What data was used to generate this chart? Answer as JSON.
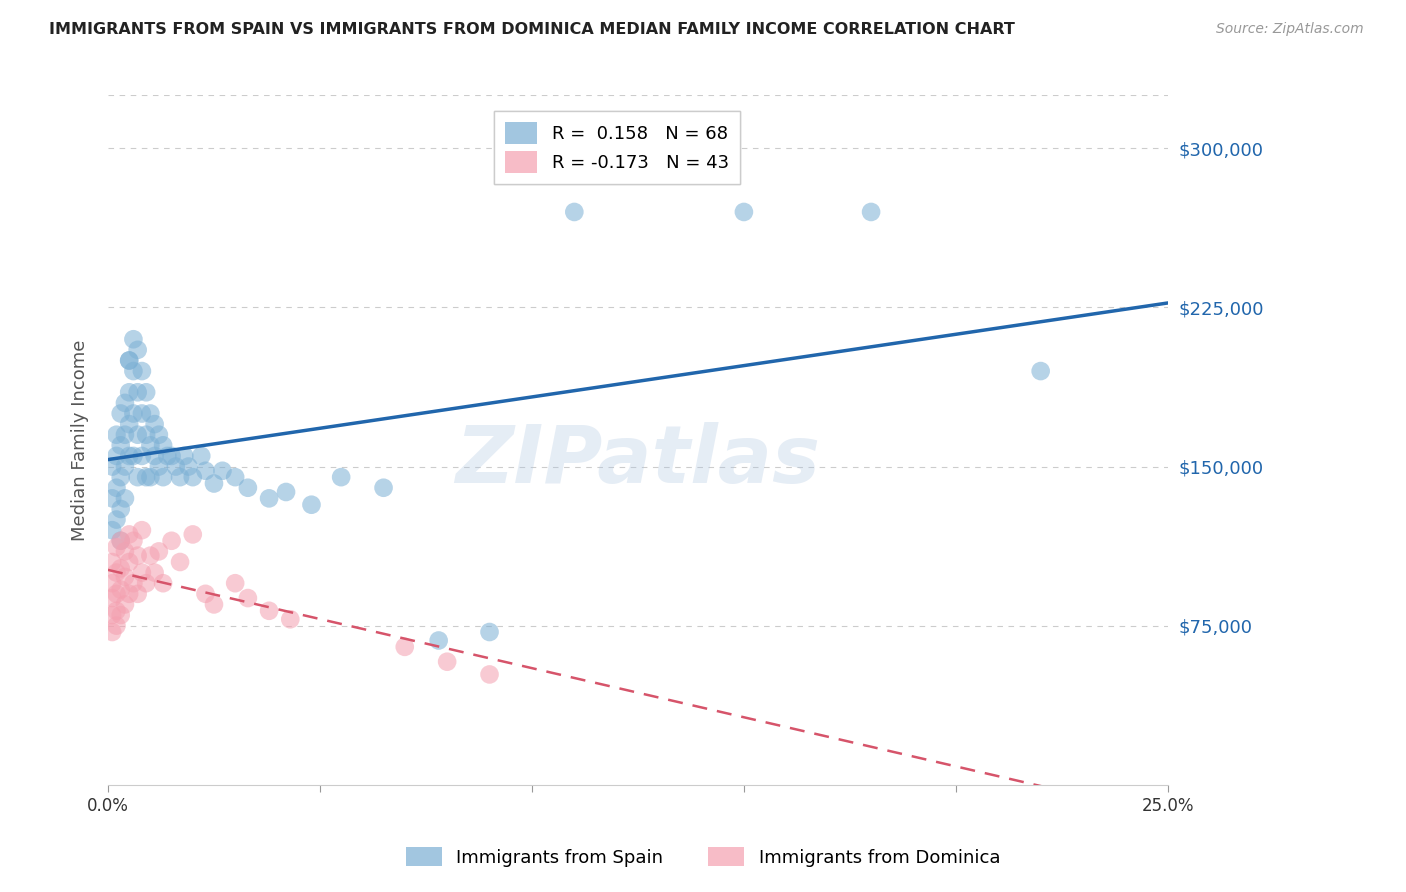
{
  "title": "IMMIGRANTS FROM SPAIN VS IMMIGRANTS FROM DOMINICA MEDIAN FAMILY INCOME CORRELATION CHART",
  "source": "Source: ZipAtlas.com",
  "ylabel": "Median Family Income",
  "yticks": [
    0,
    75000,
    150000,
    225000,
    300000
  ],
  "ytick_labels": [
    "",
    "$75,000",
    "$150,000",
    "$225,000",
    "$300,000"
  ],
  "xlim": [
    0.0,
    0.25
  ],
  "ylim": [
    0,
    325000
  ],
  "legend_label_spain": "Immigrants from Spain",
  "legend_label_dominica": "Immigrants from Dominica",
  "blue_color": "#7bafd4",
  "pink_color": "#f4a0b0",
  "blue_line_color": "#2166ac",
  "pink_line_color": "#d6546a",
  "watermark": "ZIPatlas",
  "spain_x": [
    0.001,
    0.001,
    0.001,
    0.002,
    0.002,
    0.002,
    0.002,
    0.003,
    0.003,
    0.003,
    0.003,
    0.003,
    0.004,
    0.004,
    0.004,
    0.004,
    0.005,
    0.005,
    0.005,
    0.005,
    0.005,
    0.006,
    0.006,
    0.006,
    0.006,
    0.007,
    0.007,
    0.007,
    0.007,
    0.008,
    0.008,
    0.008,
    0.009,
    0.009,
    0.009,
    0.01,
    0.01,
    0.01,
    0.011,
    0.011,
    0.012,
    0.012,
    0.013,
    0.013,
    0.014,
    0.015,
    0.016,
    0.017,
    0.018,
    0.019,
    0.02,
    0.022,
    0.023,
    0.025,
    0.027,
    0.03,
    0.033,
    0.038,
    0.042,
    0.048,
    0.055,
    0.065,
    0.078,
    0.09,
    0.11,
    0.15,
    0.18,
    0.22
  ],
  "spain_y": [
    150000,
    135000,
    120000,
    165000,
    155000,
    140000,
    125000,
    175000,
    160000,
    145000,
    130000,
    115000,
    180000,
    165000,
    150000,
    135000,
    200000,
    185000,
    170000,
    155000,
    200000,
    210000,
    195000,
    175000,
    155000,
    205000,
    185000,
    165000,
    145000,
    195000,
    175000,
    155000,
    185000,
    165000,
    145000,
    175000,
    160000,
    145000,
    170000,
    155000,
    165000,
    150000,
    160000,
    145000,
    155000,
    155000,
    150000,
    145000,
    155000,
    150000,
    145000,
    155000,
    148000,
    142000,
    148000,
    145000,
    140000,
    135000,
    138000,
    132000,
    145000,
    140000,
    68000,
    72000,
    270000,
    270000,
    270000,
    195000
  ],
  "dominica_x": [
    0.001,
    0.001,
    0.001,
    0.001,
    0.001,
    0.002,
    0.002,
    0.002,
    0.002,
    0.002,
    0.003,
    0.003,
    0.003,
    0.003,
    0.004,
    0.004,
    0.004,
    0.005,
    0.005,
    0.005,
    0.006,
    0.006,
    0.007,
    0.007,
    0.008,
    0.008,
    0.009,
    0.01,
    0.011,
    0.012,
    0.013,
    0.015,
    0.017,
    0.02,
    0.023,
    0.025,
    0.03,
    0.033,
    0.038,
    0.043,
    0.07,
    0.08,
    0.09
  ],
  "dominica_y": [
    105000,
    95000,
    88000,
    80000,
    72000,
    112000,
    100000,
    90000,
    82000,
    75000,
    115000,
    102000,
    92000,
    80000,
    110000,
    98000,
    85000,
    118000,
    105000,
    90000,
    115000,
    95000,
    108000,
    90000,
    120000,
    100000,
    95000,
    108000,
    100000,
    110000,
    95000,
    115000,
    105000,
    118000,
    90000,
    85000,
    95000,
    88000,
    82000,
    78000,
    65000,
    58000,
    52000
  ],
  "blue_legend_r": "R =  0.158",
  "blue_legend_n": "N = 68",
  "pink_legend_r": "R = -0.173",
  "pink_legend_n": "N = 43"
}
